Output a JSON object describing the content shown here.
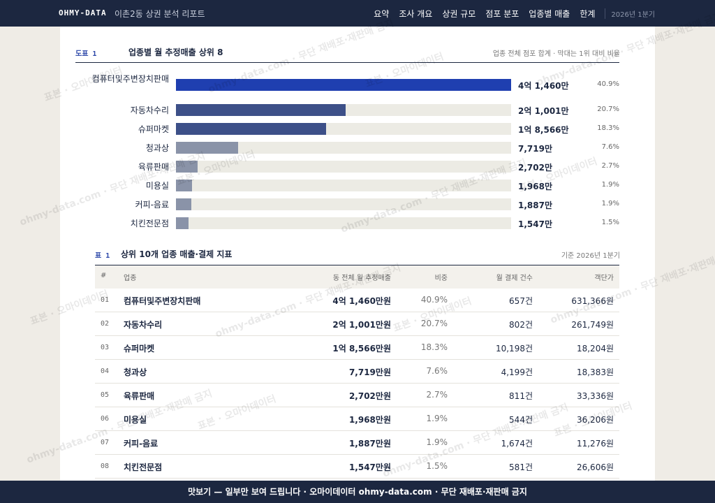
{
  "header": {
    "brand": "OHMY-DATA",
    "title": "이촌2동 상권 분석 리포트",
    "nav": [
      "요약",
      "조사 개요",
      "상권 규모",
      "점포 분포",
      "업종별 매출",
      "한계"
    ],
    "period": "2026년 1분기"
  },
  "chart_data": {
    "type": "bar",
    "orientation": "horizontal",
    "label": "도표 1",
    "title": "업종별 월 추정매출 상위 8",
    "note": "업종 전체 점포 합계 · 막대는 1위 대비 비율",
    "categories": [
      "컴퓨터및주변장치판매",
      "자동차수리",
      "슈퍼마켓",
      "청과상",
      "육류판매",
      "미용실",
      "커피-음료",
      "치킨전문점"
    ],
    "values": [
      41460,
      21001,
      18566,
      7719,
      2702,
      1968,
      1887,
      1547
    ],
    "value_labels": [
      "4억 1,460만",
      "2억 1,001만",
      "1억 8,566만",
      "7,719만",
      "2,702만",
      "1,968만",
      "1,887만",
      "1,547만"
    ],
    "share_labels": [
      "40.9%",
      "20.7%",
      "18.3%",
      "7.6%",
      "2.7%",
      "1.9%",
      "1.9%",
      "1.5%"
    ],
    "colors": [
      "#1f3fb0",
      "#3d5088",
      "#3d5088",
      "#8a93a8",
      "#8a93a8",
      "#8a93a8",
      "#8a93a8",
      "#8a93a8"
    ],
    "track_color": "#ecebe4"
  },
  "table": {
    "label": "표 1",
    "title": "상위 10개 업종 매출·결제 지표",
    "note": "기준 2026년 1분기",
    "columns": [
      "#",
      "업종",
      "동 전체 월 추정매출",
      "비중",
      "월 결제 건수",
      "객단가"
    ],
    "rows": [
      [
        "01",
        "컴퓨터및주변장치판매",
        "4억 1,460만원",
        "40.9%",
        "657건",
        "631,366원"
      ],
      [
        "02",
        "자동차수리",
        "2억 1,001만원",
        "20.7%",
        "802건",
        "261,749원"
      ],
      [
        "03",
        "슈퍼마켓",
        "1억 8,566만원",
        "18.3%",
        "10,198건",
        "18,204원"
      ],
      [
        "04",
        "청과상",
        "7,719만원",
        "7.6%",
        "4,199건",
        "18,383원"
      ],
      [
        "05",
        "육류판매",
        "2,702만원",
        "2.7%",
        "811건",
        "33,336원"
      ],
      [
        "06",
        "미용실",
        "1,968만원",
        "1.9%",
        "544건",
        "36,206원"
      ],
      [
        "07",
        "커피-음료",
        "1,887만원",
        "1.9%",
        "1,674건",
        "11,276원"
      ],
      [
        "08",
        "치킨전문점",
        "1,547만원",
        "1.5%",
        "581건",
        "26,606원"
      ]
    ]
  },
  "footer": "맛보기 — 일부만 보여 드립니다 · 오마이데이터 ohmy-data.com · 무단 재배포·재판매 금지",
  "watermarks": [
    "표본 · 오마이데이터",
    "ohmy-data.com · 무단 재배포·재판매 금지"
  ]
}
